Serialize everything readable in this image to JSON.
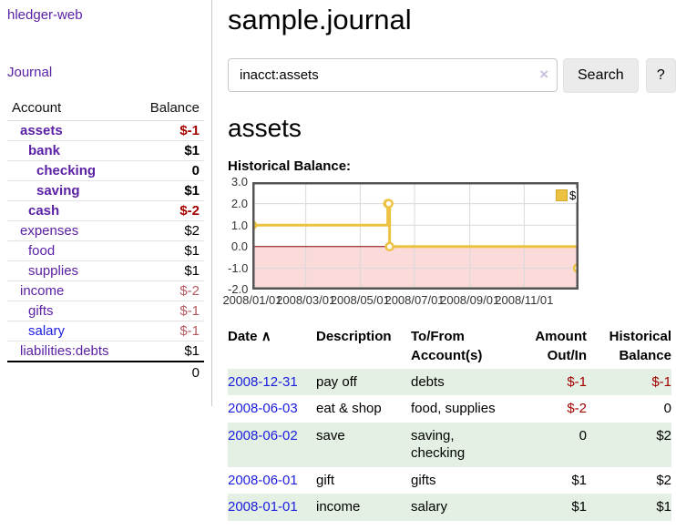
{
  "sidebar": {
    "brand": "hledger-web",
    "journal_link": "Journal",
    "accounts_table": {
      "headers": {
        "account": "Account",
        "balance": "Balance"
      },
      "rows": [
        {
          "name": "assets",
          "depth": 1,
          "bold": true,
          "balance": "$-1",
          "balance_style": "neg-strong"
        },
        {
          "name": "bank",
          "depth": 2,
          "bold": true,
          "balance": "$1",
          "balance_style": "normal"
        },
        {
          "name": "checking",
          "depth": 3,
          "bold": true,
          "balance": "0",
          "balance_style": "normal"
        },
        {
          "name": "saving",
          "depth": 3,
          "bold": true,
          "balance": "$1",
          "balance_style": "normal"
        },
        {
          "name": "cash",
          "depth": 2,
          "bold": true,
          "balance": "$-2",
          "balance_style": "neg-strong"
        },
        {
          "name": "expenses",
          "depth": 1,
          "bold": false,
          "balance": "$2",
          "balance_style": "normal"
        },
        {
          "name": "food",
          "depth": 2,
          "bold": false,
          "balance": "$1",
          "balance_style": "normal"
        },
        {
          "name": "supplies",
          "depth": 2,
          "bold": false,
          "balance": "$1",
          "balance_style": "normal"
        },
        {
          "name": "income",
          "depth": 1,
          "bold": false,
          "balance": "$-2",
          "balance_style": "neg-muted"
        },
        {
          "name": "gifts",
          "depth": 2,
          "bold": false,
          "balance": "$-1",
          "balance_style": "neg-muted"
        },
        {
          "name": "salary",
          "depth": 2,
          "bold": false,
          "balance": "$-1",
          "balance_style": "neg-muted",
          "link_style": "unvisited"
        },
        {
          "name": "liabilities:debts",
          "depth": 1,
          "bold": false,
          "balance": "$1",
          "balance_style": "normal"
        }
      ],
      "total": "0"
    }
  },
  "main": {
    "title": "sample.journal",
    "search": {
      "value": "inacct:assets",
      "clear_icon": "×",
      "button_label": "Search",
      "help_label": "?"
    },
    "account_heading": "assets",
    "chart_label": "Historical Balance:"
  },
  "chart_data": {
    "type": "line",
    "title": "Historical Balance:",
    "step": true,
    "ylim": [
      -2,
      3
    ],
    "y_ticks": [
      3.0,
      2.0,
      1.0,
      0.0,
      -1.0,
      -2.0
    ],
    "x_max_days": 366,
    "x_ticks": [
      {
        "label": "2008/01/01",
        "day": 0
      },
      {
        "label": "2008/03/01",
        "day": 60
      },
      {
        "label": "2008/05/01",
        "day": 121
      },
      {
        "label": "2008/07/01",
        "day": 182
      },
      {
        "label": "2008/09/01",
        "day": 244
      },
      {
        "label": "2008/11/01",
        "day": 305
      }
    ],
    "series": [
      {
        "name": "$",
        "color": "#edc240",
        "points": [
          {
            "date": "2008-01-01",
            "day": 0,
            "value": 1
          },
          {
            "date": "2008-06-01",
            "day": 152,
            "value": 2
          },
          {
            "date": "2008-06-02",
            "day": 153,
            "value": 2
          },
          {
            "date": "2008-06-03",
            "day": 154,
            "value": 0
          },
          {
            "date": "2008-12-31",
            "day": 365,
            "value": -1
          }
        ]
      }
    ],
    "legend": {
      "label": "$",
      "position": "top-right"
    },
    "grid": true,
    "negative_region_color": "#fbdada",
    "zero_line_color": "#8b0000"
  },
  "register": {
    "headers": {
      "date": "Date",
      "sort_icon": "∧",
      "description": "Description",
      "accounts": "To/From Account(s)",
      "amount": "Amount Out/In",
      "balance": "Historical Balance"
    },
    "rows": [
      {
        "date": "2008-12-31",
        "description": "pay off",
        "accounts": "debts",
        "amount": "$-1",
        "amount_neg": true,
        "balance": "$-1",
        "balance_neg": true,
        "shaded": true
      },
      {
        "date": "2008-06-03",
        "description": "eat & shop",
        "accounts": "food, supplies",
        "amount": "$-2",
        "amount_neg": true,
        "balance": "0",
        "balance_neg": false,
        "shaded": false
      },
      {
        "date": "2008-06-02",
        "description": "save",
        "accounts": "saving, checking",
        "amount": "0",
        "amount_neg": false,
        "balance": "$2",
        "balance_neg": false,
        "shaded": true
      },
      {
        "date": "2008-06-01",
        "description": "gift",
        "accounts": "gifts",
        "amount": "$1",
        "amount_neg": false,
        "balance": "$2",
        "balance_neg": false,
        "shaded": false
      },
      {
        "date": "2008-01-01",
        "description": "income",
        "accounts": "salary",
        "amount": "$1",
        "amount_neg": false,
        "balance": "$1",
        "balance_neg": false,
        "shaded": true
      }
    ]
  },
  "colors": {
    "link_purple": "#5b21a5",
    "link_blue": "#1d1de0",
    "negative_strong": "#a40000",
    "negative_muted": "#b2595e",
    "row_green": "#e3f0e3",
    "chart_line": "#edc240",
    "chart_negative_region": "#fbdada",
    "chart_zero_line": "#8b0000",
    "button_gray": "#ebebeb"
  }
}
